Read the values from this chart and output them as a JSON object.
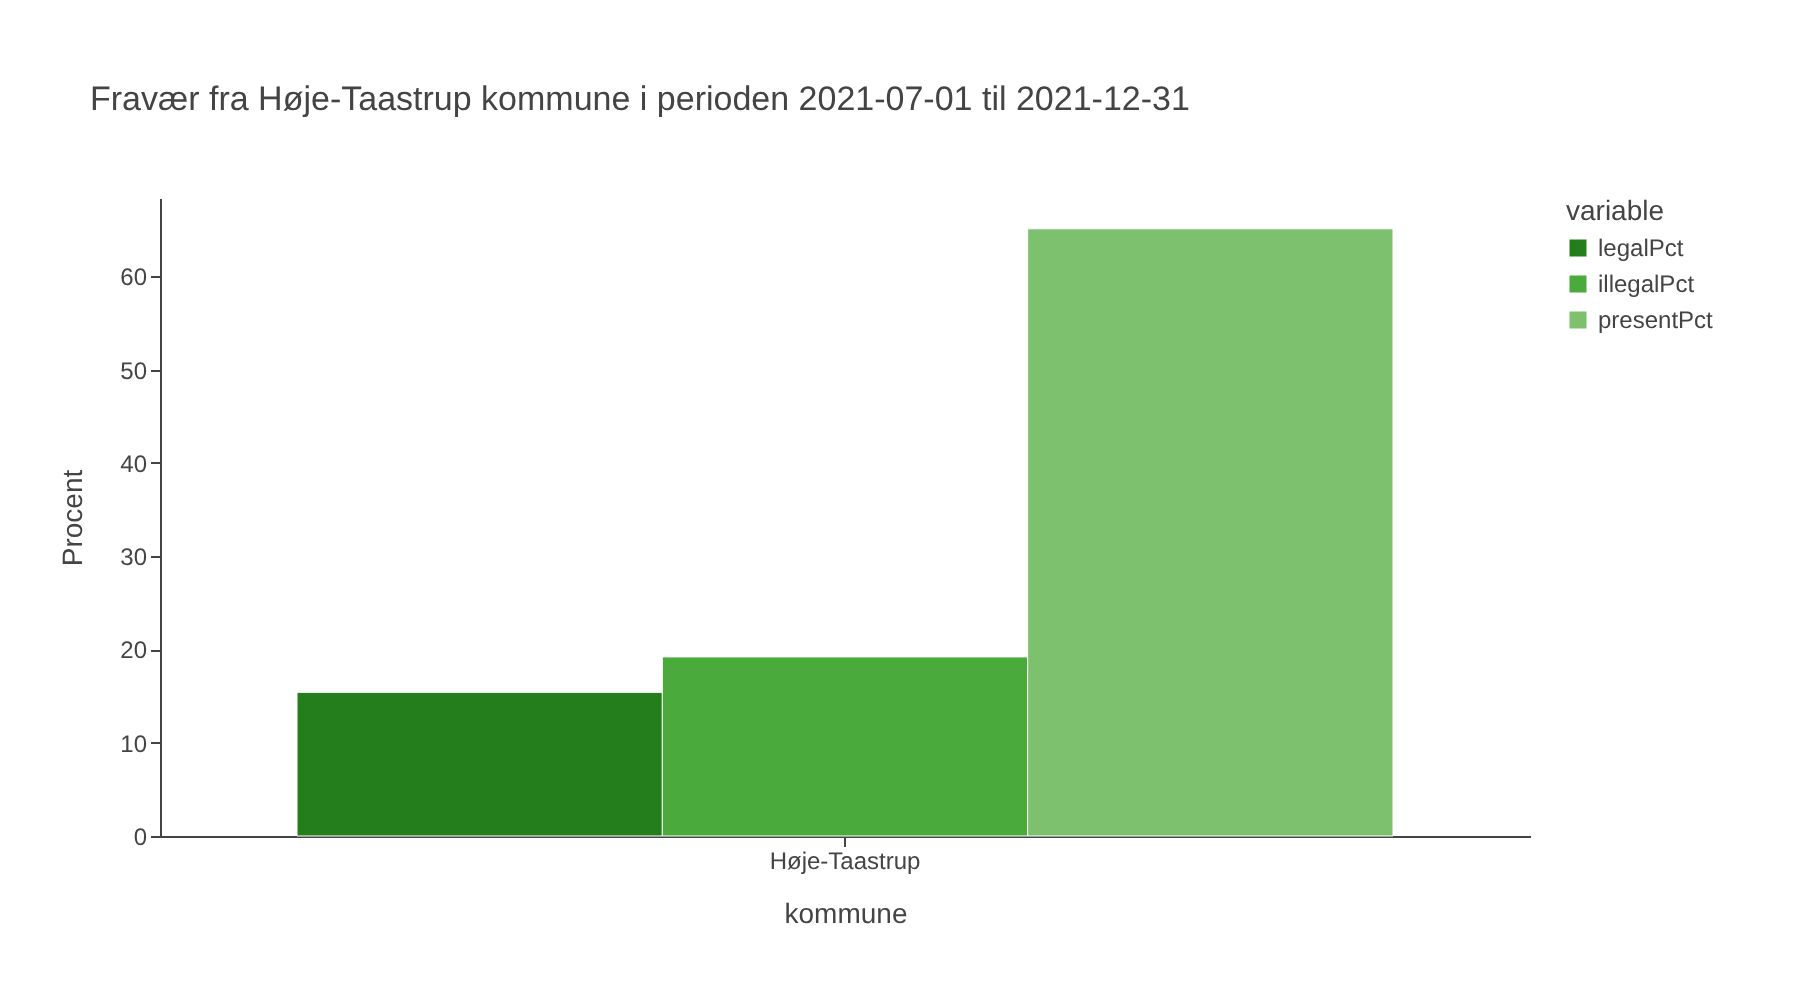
{
  "chart_data": {
    "type": "bar",
    "title": "Fravær fra Høje-Taastrup kommune i perioden 2021-07-01 til 2021-12-31",
    "xlabel": "kommune",
    "ylabel": "Procent",
    "legend_title": "variable",
    "categories": [
      "Høje-Taastrup"
    ],
    "series": [
      {
        "name": "legalPct",
        "color": "#247e1b",
        "values": [
          15.4
        ]
      },
      {
        "name": "illegalPct",
        "color": "#4aaa3b",
        "values": [
          19.2
        ]
      },
      {
        "name": "presentPct",
        "color": "#7dc16e",
        "values": [
          65.1
        ]
      }
    ],
    "ylim": [
      0,
      68.4
    ],
    "yticks": [
      0,
      10,
      20,
      30,
      40,
      50,
      60
    ],
    "grid": false,
    "legend": "top right"
  }
}
